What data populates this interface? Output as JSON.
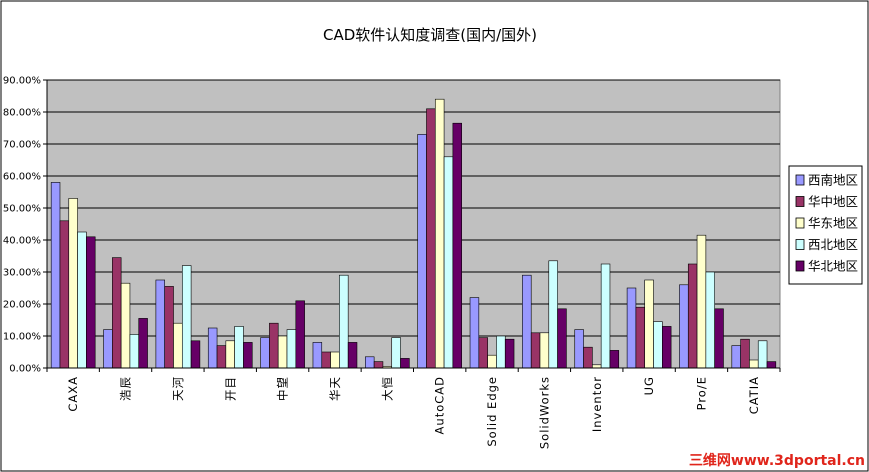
{
  "chart_data": {
    "type": "bar",
    "title": "CAD软件认知度调查(国内/国外)",
    "categories": [
      "CAXA",
      "浩辰",
      "天河",
      "开目",
      "中望",
      "华天",
      "大恒",
      "AutoCAD",
      "Solid Edge",
      "SolidWorks",
      "Inventor",
      "UG",
      "Pro/E",
      "CATIA"
    ],
    "series": [
      {
        "name": "西南地区",
        "color": "#9999ff",
        "values": [
          58.0,
          12.0,
          27.5,
          12.5,
          9.5,
          8.0,
          3.5,
          73.0,
          22.0,
          29.0,
          12.0,
          25.0,
          26.0,
          7.0
        ]
      },
      {
        "name": "华中地区",
        "color": "#993366",
        "values": [
          46.0,
          34.5,
          25.5,
          7.0,
          14.0,
          5.0,
          2.0,
          81.0,
          9.5,
          11.0,
          6.5,
          19.0,
          32.5,
          9.0
        ]
      },
      {
        "name": "华东地区",
        "color": "#ffffcc",
        "values": [
          53.0,
          26.5,
          14.0,
          8.5,
          10.0,
          5.0,
          0.5,
          84.0,
          4.0,
          11.0,
          1.0,
          27.5,
          41.5,
          2.5
        ]
      },
      {
        "name": "西北地区",
        "color": "#ccffff",
        "values": [
          42.5,
          10.5,
          32.0,
          13.0,
          12.0,
          29.0,
          9.5,
          66.0,
          10.0,
          33.5,
          32.5,
          14.5,
          30.0,
          8.5
        ]
      },
      {
        "name": "华北地区",
        "color": "#660066",
        "values": [
          41.0,
          15.5,
          8.5,
          8.0,
          21.0,
          8.0,
          3.0,
          76.5,
          9.0,
          18.5,
          5.5,
          13.0,
          18.5,
          2.0
        ]
      }
    ],
    "yticks": [
      "0.00%",
      "10.00%",
      "20.00%",
      "30.00%",
      "40.00%",
      "50.00%",
      "60.00%",
      "70.00%",
      "80.00%",
      "90.00%"
    ],
    "ylim": [
      0,
      90
    ],
    "xlabel": "",
    "ylabel": "",
    "grid": true,
    "plot_background": "#c0c0c0",
    "legend_position": "right"
  },
  "watermark": "三维网www.3dportal.cn"
}
